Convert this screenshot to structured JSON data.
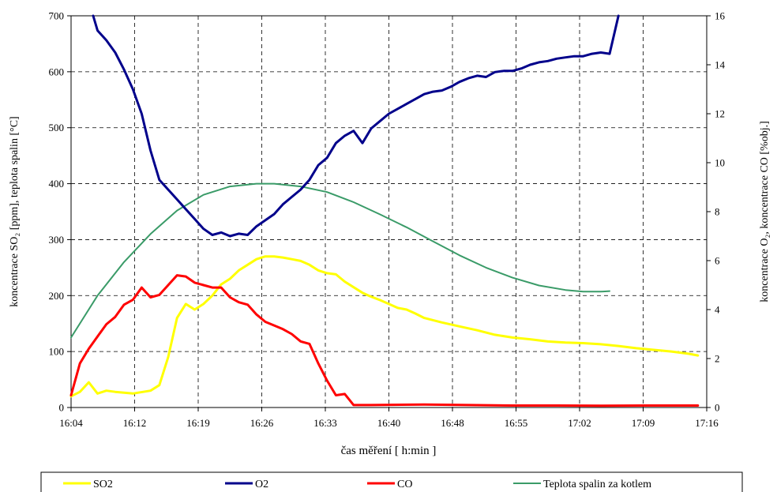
{
  "chart_data": {
    "type": "line",
    "xlabel": "čas měření [ h:min ]",
    "ylabel_left": "koncentrace SO₂ [ppm], teplota spalin [°C]",
    "ylabel_right": "koncentrace O₂, koncentrace CO [%obj.]",
    "x_tick_labels": [
      "16:04",
      "16:12",
      "16:19",
      "16:26",
      "16:33",
      "16:40",
      "16:48",
      "16:55",
      "17:02",
      "17:09",
      "17:16"
    ],
    "xlim_minutes": [
      0,
      72
    ],
    "y_left": {
      "lim": [
        0,
        700
      ],
      "ticks": [
        0,
        100,
        200,
        300,
        400,
        500,
        600,
        700
      ]
    },
    "y_right": {
      "lim": [
        0,
        16
      ],
      "ticks": [
        0,
        2,
        4,
        6,
        8,
        10,
        12,
        14,
        16
      ]
    },
    "grid": true,
    "legend_position": "bottom",
    "series": [
      {
        "name": "SO2",
        "axis": "left",
        "color": "#ffff00",
        "points": [
          [
            0,
            20
          ],
          [
            1,
            28
          ],
          [
            2,
            45
          ],
          [
            3,
            25
          ],
          [
            4,
            30
          ],
          [
            5,
            28
          ],
          [
            7,
            25
          ],
          [
            9,
            30
          ],
          [
            10,
            40
          ],
          [
            11,
            90
          ],
          [
            12,
            160
          ],
          [
            13,
            185
          ],
          [
            14,
            175
          ],
          [
            15,
            185
          ],
          [
            16,
            200
          ],
          [
            17,
            220
          ],
          [
            18,
            230
          ],
          [
            19,
            245
          ],
          [
            20,
            255
          ],
          [
            21,
            265
          ],
          [
            22,
            270
          ],
          [
            23,
            270
          ],
          [
            24,
            268
          ],
          [
            25,
            265
          ],
          [
            26,
            262
          ],
          [
            27,
            255
          ],
          [
            28,
            245
          ],
          [
            29,
            240
          ],
          [
            30,
            238
          ],
          [
            31,
            225
          ],
          [
            32,
            215
          ],
          [
            33,
            205
          ],
          [
            34,
            198
          ],
          [
            35,
            192
          ],
          [
            36,
            185
          ],
          [
            37,
            178
          ],
          [
            38,
            175
          ],
          [
            39,
            168
          ],
          [
            40,
            160
          ],
          [
            42,
            152
          ],
          [
            44,
            145
          ],
          [
            46,
            138
          ],
          [
            48,
            130
          ],
          [
            50,
            125
          ],
          [
            52,
            122
          ],
          [
            54,
            118
          ],
          [
            56,
            116
          ],
          [
            58,
            115
          ],
          [
            60,
            113
          ],
          [
            62,
            110
          ],
          [
            64,
            106
          ],
          [
            66,
            103
          ],
          [
            68,
            100
          ],
          [
            70,
            96
          ],
          [
            71,
            93
          ]
        ]
      },
      {
        "name": "O2",
        "axis": "right",
        "color": "#00008b",
        "points": [
          [
            2.5,
            16
          ],
          [
            3,
            15.4
          ],
          [
            4,
            15
          ],
          [
            5,
            14.5
          ],
          [
            6,
            13.8
          ],
          [
            7,
            13
          ],
          [
            8,
            12
          ],
          [
            9,
            10.5
          ],
          [
            10,
            9.3
          ],
          [
            11,
            8.9
          ],
          [
            12,
            8.5
          ],
          [
            13,
            8.1
          ],
          [
            14,
            7.7
          ],
          [
            15,
            7.3
          ],
          [
            16,
            7.05
          ],
          [
            17,
            7.15
          ],
          [
            18,
            7.0
          ],
          [
            19,
            7.1
          ],
          [
            20,
            7.05
          ],
          [
            21,
            7.4
          ],
          [
            22,
            7.65
          ],
          [
            23,
            7.9
          ],
          [
            24,
            8.3
          ],
          [
            25,
            8.6
          ],
          [
            26,
            8.9
          ],
          [
            27,
            9.3
          ],
          [
            28,
            9.9
          ],
          [
            29,
            10.2
          ],
          [
            30,
            10.8
          ],
          [
            31,
            11.1
          ],
          [
            32,
            11.3
          ],
          [
            33,
            10.8
          ],
          [
            34,
            11.4
          ],
          [
            35,
            11.7
          ],
          [
            36,
            12.0
          ],
          [
            37,
            12.2
          ],
          [
            38,
            12.4
          ],
          [
            39,
            12.6
          ],
          [
            40,
            12.8
          ],
          [
            41,
            12.9
          ],
          [
            42,
            12.95
          ],
          [
            43,
            13.1
          ],
          [
            44,
            13.3
          ],
          [
            45,
            13.45
          ],
          [
            46,
            13.55
          ],
          [
            47,
            13.5
          ],
          [
            48,
            13.7
          ],
          [
            49,
            13.75
          ],
          [
            50,
            13.75
          ],
          [
            51,
            13.85
          ],
          [
            52,
            14.0
          ],
          [
            53,
            14.1
          ],
          [
            54,
            14.15
          ],
          [
            55,
            14.25
          ],
          [
            56,
            14.3
          ],
          [
            57,
            14.35
          ],
          [
            58,
            14.35
          ],
          [
            59,
            14.45
          ],
          [
            60,
            14.5
          ],
          [
            61,
            14.45
          ],
          [
            62,
            16.0
          ]
        ]
      },
      {
        "name": "CO",
        "axis": "right",
        "color": "#ff0000",
        "points": [
          [
            0,
            0.5
          ],
          [
            1,
            1.8
          ],
          [
            2,
            2.4
          ],
          [
            3,
            2.9
          ],
          [
            4,
            3.4
          ],
          [
            5,
            3.7
          ],
          [
            6,
            4.2
          ],
          [
            7,
            4.4
          ],
          [
            8,
            4.9
          ],
          [
            9,
            4.5
          ],
          [
            10,
            4.6
          ],
          [
            11,
            5.0
          ],
          [
            12,
            5.4
          ],
          [
            13,
            5.35
          ],
          [
            14,
            5.1
          ],
          [
            15,
            5.0
          ],
          [
            16,
            4.9
          ],
          [
            17,
            4.9
          ],
          [
            18,
            4.5
          ],
          [
            19,
            4.3
          ],
          [
            20,
            4.2
          ],
          [
            21,
            3.8
          ],
          [
            22,
            3.5
          ],
          [
            23,
            3.35
          ],
          [
            24,
            3.2
          ],
          [
            25,
            3.0
          ],
          [
            26,
            2.7
          ],
          [
            27,
            2.6
          ],
          [
            28,
            1.8
          ],
          [
            29,
            1.1
          ],
          [
            30,
            0.5
          ],
          [
            31,
            0.55
          ],
          [
            32,
            0.1
          ],
          [
            34,
            0.1
          ],
          [
            40,
            0.12
          ],
          [
            45,
            0.1
          ],
          [
            50,
            0.08
          ],
          [
            55,
            0.08
          ],
          [
            60,
            0.07
          ],
          [
            65,
            0.08
          ],
          [
            70,
            0.08
          ],
          [
            71,
            0.08
          ]
        ]
      },
      {
        "name": "Teplota spalin za kotlem",
        "axis": "left",
        "color": "#3a9b68",
        "points": [
          [
            0,
            125
          ],
          [
            3,
            200
          ],
          [
            6,
            260
          ],
          [
            9,
            310
          ],
          [
            12,
            352
          ],
          [
            15,
            380
          ],
          [
            18,
            395
          ],
          [
            21,
            400
          ],
          [
            23,
            400
          ],
          [
            26,
            395
          ],
          [
            29,
            385
          ],
          [
            32,
            367
          ],
          [
            35,
            345
          ],
          [
            38,
            322
          ],
          [
            41,
            297
          ],
          [
            44,
            272
          ],
          [
            47,
            250
          ],
          [
            50,
            232
          ],
          [
            53,
            218
          ],
          [
            56,
            210
          ],
          [
            58,
            207
          ],
          [
            60,
            207
          ],
          [
            61,
            208
          ]
        ]
      }
    ]
  }
}
